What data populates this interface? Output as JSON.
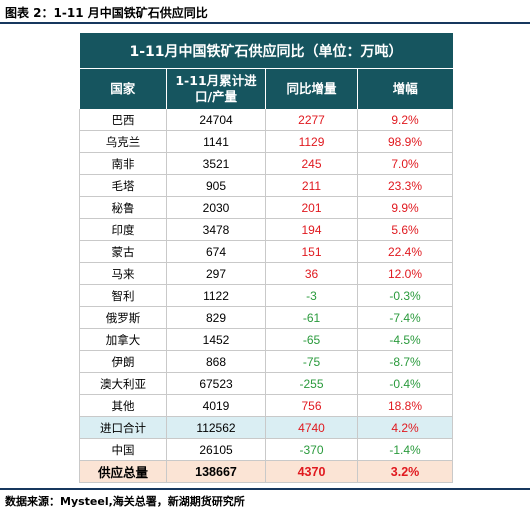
{
  "figure_title": "图表 2：1-11 月中国铁矿石供应同比",
  "table": {
    "title": "1-11月中国铁矿石供应同比（单位：万吨）",
    "headers": [
      "国家",
      "1-11月累计进口/产量",
      "同比增量",
      "增幅"
    ],
    "rows": [
      {
        "country": "巴西",
        "volume": "24704",
        "change": "2277",
        "pct": "9.2%",
        "dir": "pos",
        "style": ""
      },
      {
        "country": "乌克兰",
        "volume": "1141",
        "change": "1129",
        "pct": "98.9%",
        "dir": "pos",
        "style": ""
      },
      {
        "country": "南非",
        "volume": "3521",
        "change": "245",
        "pct": "7.0%",
        "dir": "pos",
        "style": ""
      },
      {
        "country": "毛塔",
        "volume": "905",
        "change": "211",
        "pct": "23.3%",
        "dir": "pos",
        "style": ""
      },
      {
        "country": "秘鲁",
        "volume": "2030",
        "change": "201",
        "pct": "9.9%",
        "dir": "pos",
        "style": ""
      },
      {
        "country": "印度",
        "volume": "3478",
        "change": "194",
        "pct": "5.6%",
        "dir": "pos",
        "style": ""
      },
      {
        "country": "蒙古",
        "volume": "674",
        "change": "151",
        "pct": "22.4%",
        "dir": "pos",
        "style": ""
      },
      {
        "country": "马来",
        "volume": "297",
        "change": "36",
        "pct": "12.0%",
        "dir": "pos",
        "style": ""
      },
      {
        "country": "智利",
        "volume": "1122",
        "change": "-3",
        "pct": "-0.3%",
        "dir": "neg",
        "style": ""
      },
      {
        "country": "俄罗斯",
        "volume": "829",
        "change": "-61",
        "pct": "-7.4%",
        "dir": "neg",
        "style": ""
      },
      {
        "country": "加拿大",
        "volume": "1452",
        "change": "-65",
        "pct": "-4.5%",
        "dir": "neg",
        "style": ""
      },
      {
        "country": "伊朗",
        "volume": "868",
        "change": "-75",
        "pct": "-8.7%",
        "dir": "neg",
        "style": ""
      },
      {
        "country": "澳大利亚",
        "volume": "67523",
        "change": "-255",
        "pct": "-0.4%",
        "dir": "neg",
        "style": ""
      },
      {
        "country": "其他",
        "volume": "4019",
        "change": "756",
        "pct": "18.8%",
        "dir": "pos",
        "style": ""
      },
      {
        "country": "进口合计",
        "volume": "112562",
        "change": "4740",
        "pct": "4.2%",
        "dir": "pos",
        "style": "sub"
      },
      {
        "country": "中国",
        "volume": "26105",
        "change": "-370",
        "pct": "-1.4%",
        "dir": "neg",
        "style": ""
      },
      {
        "country": "供应总量",
        "volume": "138667",
        "change": "4370",
        "pct": "3.2%",
        "dir": "pos",
        "style": "tot"
      }
    ]
  },
  "source": "数据来源：Mysteel,海关总署，新湖期货研究所",
  "colors": {
    "header_bg": "#16555f",
    "positive": "#e0191f",
    "negative": "#2a9a3c",
    "subtotal_bg": "#daeef3",
    "total_bg": "#fbe4d5"
  }
}
